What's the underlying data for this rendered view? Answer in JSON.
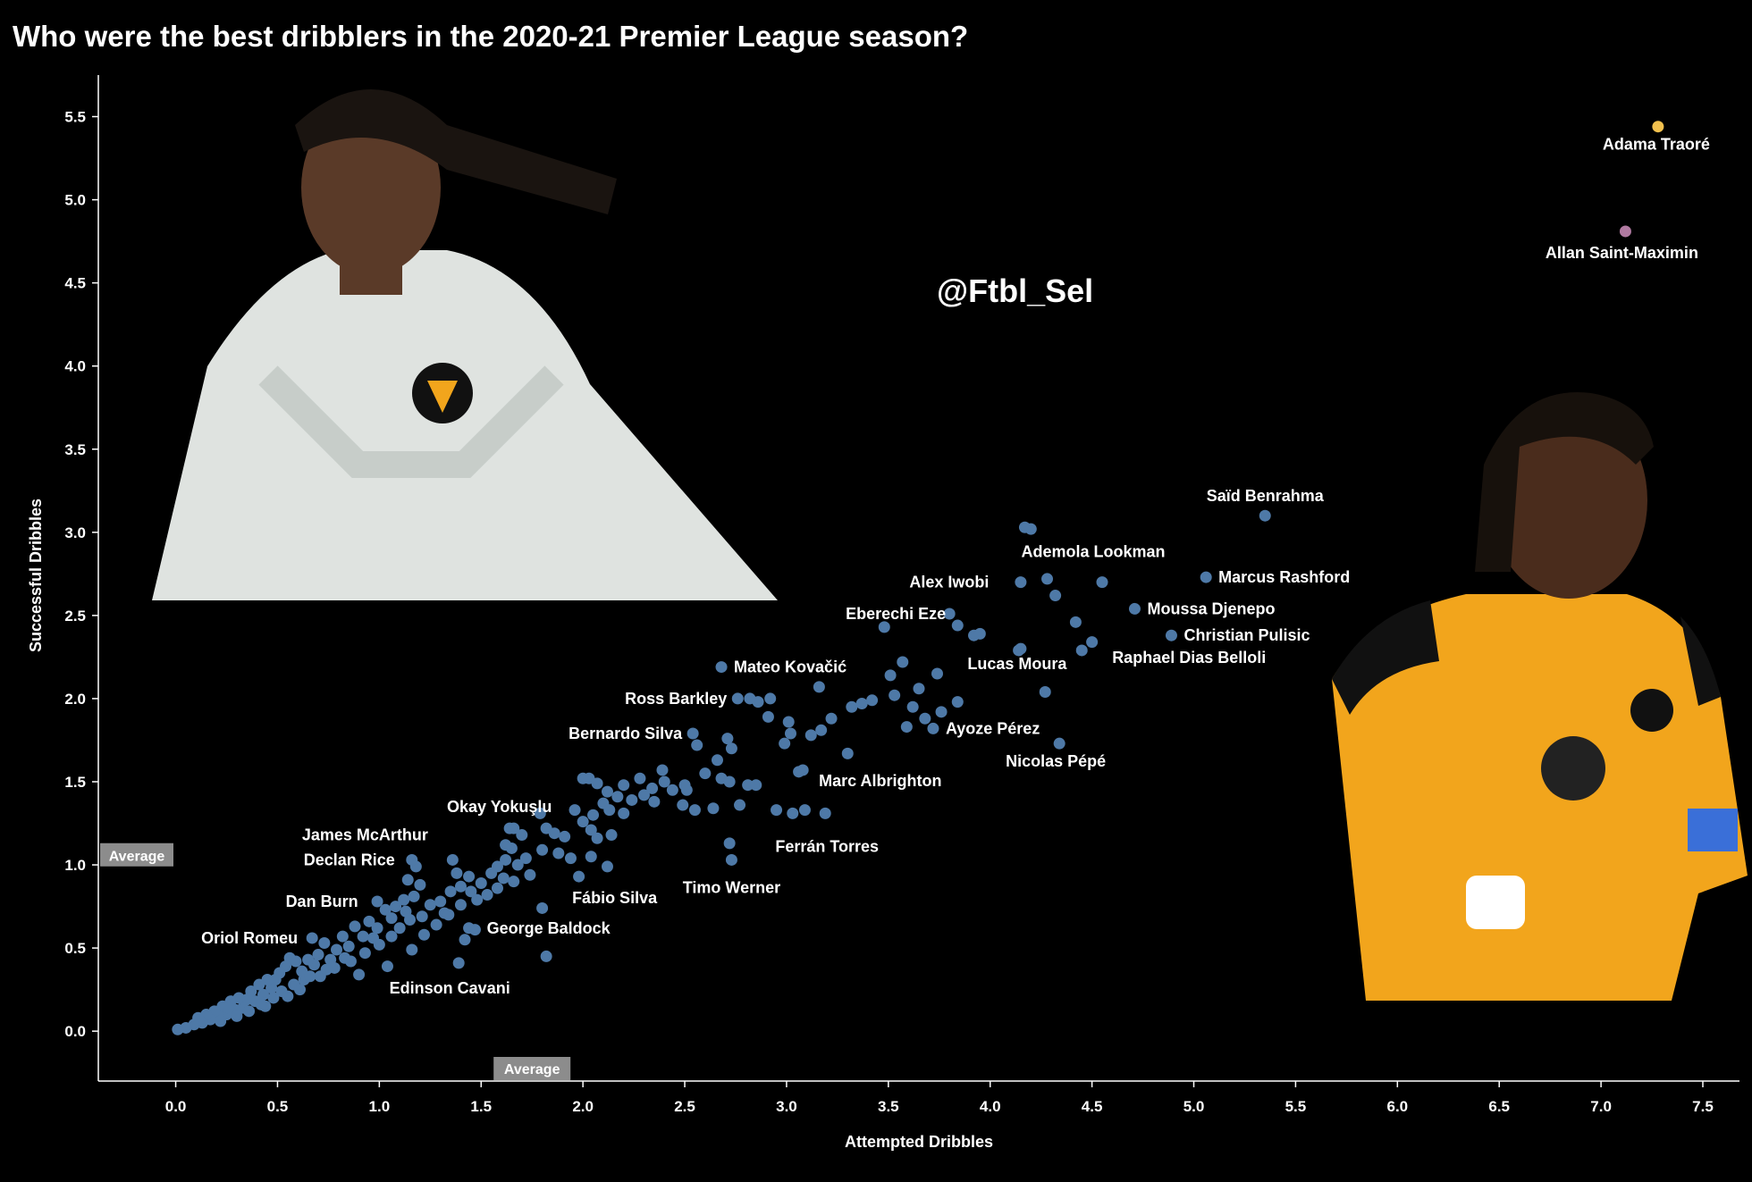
{
  "title": "Who were the best dribblers in the 2020-21 Premier League season?",
  "watermark": "@Ftbl_Sel",
  "average_label": "Average",
  "player_photos": [
    {
      "name": "photo-adama-traore-white-kit",
      "kit_color": "#dfe3e0"
    },
    {
      "name": "photo-adama-traore-gold-kit",
      "kit_color": "#f2a51c"
    }
  ],
  "chart_data": {
    "type": "scatter",
    "title": "Who were the best dribblers in the 2020-21 Premier League season?",
    "xlabel": "Attempted Dribbles",
    "ylabel": "Successful Dribbles",
    "xlim": [
      -0.38,
      7.68
    ],
    "ylim": [
      -0.3,
      5.75
    ],
    "xticks": [
      "0.0",
      "0.5",
      "1.0",
      "1.5",
      "2.0",
      "2.5",
      "3.0",
      "3.5",
      "4.0",
      "4.5",
      "5.0",
      "5.5",
      "6.0",
      "6.5",
      "7.0",
      "7.5"
    ],
    "yticks": [
      "0.0",
      "0.5",
      "1.0",
      "1.5",
      "2.0",
      "2.5",
      "3.0",
      "3.5",
      "4.0",
      "4.5",
      "5.0",
      "5.5"
    ],
    "grid": false,
    "point_color": "#4e79a7",
    "averages": {
      "x": 1.75,
      "y": 1.05
    },
    "highlighted": [
      {
        "name": "Adama Traoré",
        "x": 7.28,
        "y": 5.44,
        "color": "#f2c14e"
      },
      {
        "name": "Allan Saint-Maximin",
        "x": 7.12,
        "y": 4.81,
        "color": "#b07aa1"
      }
    ],
    "labeled_points": [
      {
        "name": "Saïd Benrahma",
        "x": 5.35,
        "y": 3.1
      },
      {
        "name": "Ademola Lookman",
        "x": 4.55,
        "y": 2.7
      },
      {
        "name": "Alex Iwobi",
        "x": 4.15,
        "y": 2.7
      },
      {
        "name": "Marcus Rashford",
        "x": 5.06,
        "y": 2.73
      },
      {
        "name": "Eberechi Eze",
        "x": 3.8,
        "y": 2.51
      },
      {
        "name": "Moussa Djenepo",
        "x": 4.71,
        "y": 2.54
      },
      {
        "name": "Christian Pulisic",
        "x": 4.89,
        "y": 2.38
      },
      {
        "name": "Lucas Moura",
        "x": 4.15,
        "y": 2.3
      },
      {
        "name": "Raphael Dias Belloli",
        "x": 4.45,
        "y": 2.29
      },
      {
        "name": "Mateo Kovačić",
        "x": 2.68,
        "y": 2.19
      },
      {
        "name": "Ross Barkley",
        "x": 2.76,
        "y": 2.0
      },
      {
        "name": "Ayoze Pérez",
        "x": 3.72,
        "y": 1.82
      },
      {
        "name": "Bernardo Silva",
        "x": 2.54,
        "y": 1.79
      },
      {
        "name": "Nicolas Pépé",
        "x": 4.34,
        "y": 1.73
      },
      {
        "name": "Marc Albrighton",
        "x": 3.08,
        "y": 1.57
      },
      {
        "name": "Okay Yokuşlu",
        "x": 1.66,
        "y": 1.22
      },
      {
        "name": "Ferrán Torres",
        "x": 3.19,
        "y": 1.31
      },
      {
        "name": "James McArthur",
        "x": 1.36,
        "y": 1.03
      },
      {
        "name": "Declan Rice",
        "x": 1.16,
        "y": 1.03
      },
      {
        "name": "Timo Werner",
        "x": 2.73,
        "y": 1.03
      },
      {
        "name": "Fábio Silva",
        "x": 1.98,
        "y": 0.93
      },
      {
        "name": "Dan Burn",
        "x": 0.99,
        "y": 0.78
      },
      {
        "name": "George Baldock",
        "x": 1.44,
        "y": 0.62
      },
      {
        "name": "Oriol Romeu",
        "x": 0.67,
        "y": 0.56
      },
      {
        "name": "Edinson Cavani",
        "x": 1.39,
        "y": 0.41
      }
    ],
    "other_points": [
      [
        4.17,
        3.03
      ],
      [
        4.2,
        3.02
      ],
      [
        4.28,
        2.72
      ],
      [
        4.32,
        2.62
      ],
      [
        3.84,
        2.44
      ],
      [
        3.92,
        2.38
      ],
      [
        3.95,
        2.39
      ],
      [
        4.42,
        2.46
      ],
      [
        4.5,
        2.34
      ],
      [
        4.14,
        2.29
      ],
      [
        4.27,
        2.04
      ],
      [
        3.48,
        2.43
      ],
      [
        3.57,
        2.22
      ],
      [
        3.51,
        2.14
      ],
      [
        3.74,
        2.15
      ],
      [
        3.53,
        2.02
      ],
      [
        3.62,
        1.95
      ],
      [
        3.65,
        2.06
      ],
      [
        3.76,
        1.92
      ],
      [
        3.84,
        1.98
      ],
      [
        3.59,
        1.83
      ],
      [
        3.68,
        1.88
      ],
      [
        3.42,
        1.99
      ],
      [
        3.37,
        1.97
      ],
      [
        3.32,
        1.95
      ],
      [
        3.22,
        1.88
      ],
      [
        3.17,
        1.81
      ],
      [
        3.12,
        1.78
      ],
      [
        3.02,
        1.79
      ],
      [
        2.99,
        1.73
      ],
      [
        3.01,
        1.86
      ],
      [
        3.3,
        1.67
      ],
      [
        3.16,
        2.07
      ],
      [
        3.06,
        1.56
      ],
      [
        2.86,
        1.98
      ],
      [
        2.92,
        2.0
      ],
      [
        2.82,
        2.0
      ],
      [
        2.91,
        1.89
      ],
      [
        2.56,
        1.72
      ],
      [
        2.71,
        1.76
      ],
      [
        2.73,
        1.7
      ],
      [
        2.66,
        1.63
      ],
      [
        2.68,
        1.52
      ],
      [
        2.72,
        1.5
      ],
      [
        2.81,
        1.48
      ],
      [
        2.85,
        1.48
      ],
      [
        2.77,
        1.36
      ],
      [
        2.64,
        1.34
      ],
      [
        2.55,
        1.33
      ],
      [
        2.49,
        1.36
      ],
      [
        2.51,
        1.45
      ],
      [
        2.39,
        1.57
      ],
      [
        2.44,
        1.45
      ],
      [
        2.34,
        1.46
      ],
      [
        2.28,
        1.52
      ],
      [
        2.3,
        1.42
      ],
      [
        2.24,
        1.39
      ],
      [
        2.17,
        1.41
      ],
      [
        2.2,
        1.48
      ],
      [
        2.12,
        1.44
      ],
      [
        2.03,
        1.52
      ],
      [
        2.07,
        1.49
      ],
      [
        2.0,
        1.52
      ],
      [
        2.1,
        1.37
      ],
      [
        2.05,
        1.3
      ],
      [
        2.13,
        1.33
      ],
      [
        2.0,
        1.26
      ],
      [
        1.96,
        1.33
      ],
      [
        2.04,
        1.21
      ],
      [
        2.07,
        1.16
      ],
      [
        2.14,
        1.18
      ],
      [
        2.04,
        1.05
      ],
      [
        2.12,
        0.99
      ],
      [
        1.91,
        1.17
      ],
      [
        1.86,
        1.19
      ],
      [
        1.82,
        1.22
      ],
      [
        1.79,
        1.31
      ],
      [
        1.88,
        1.07
      ],
      [
        1.94,
        1.04
      ],
      [
        1.8,
        1.09
      ],
      [
        1.72,
        1.04
      ],
      [
        1.65,
        1.1
      ],
      [
        1.68,
        1.0
      ],
      [
        1.62,
        1.03
      ],
      [
        1.58,
        0.99
      ],
      [
        1.55,
        0.95
      ],
      [
        1.61,
        0.92
      ],
      [
        1.5,
        0.89
      ],
      [
        1.45,
        0.84
      ],
      [
        1.4,
        0.87
      ],
      [
        1.44,
        0.93
      ],
      [
        1.38,
        0.95
      ],
      [
        1.35,
        0.84
      ],
      [
        1.3,
        0.78
      ],
      [
        1.32,
        0.71
      ],
      [
        1.25,
        0.76
      ],
      [
        1.2,
        0.88
      ],
      [
        1.18,
        0.99
      ],
      [
        1.14,
        0.91
      ],
      [
        1.12,
        0.79
      ],
      [
        1.08,
        0.75
      ],
      [
        1.15,
        0.67
      ],
      [
        1.1,
        0.62
      ],
      [
        1.06,
        0.68
      ],
      [
        1.03,
        0.73
      ],
      [
        0.99,
        0.62
      ],
      [
        0.95,
        0.66
      ],
      [
        0.92,
        0.57
      ],
      [
        0.88,
        0.63
      ],
      [
        0.85,
        0.51
      ],
      [
        0.82,
        0.57
      ],
      [
        0.79,
        0.49
      ],
      [
        0.76,
        0.43
      ],
      [
        0.73,
        0.53
      ],
      [
        0.7,
        0.46
      ],
      [
        0.68,
        0.4
      ],
      [
        0.65,
        0.43
      ],
      [
        0.62,
        0.36
      ],
      [
        0.59,
        0.42
      ],
      [
        0.56,
        0.44
      ],
      [
        0.54,
        0.39
      ],
      [
        0.51,
        0.35
      ],
      [
        0.49,
        0.31
      ],
      [
        0.47,
        0.26
      ],
      [
        0.45,
        0.31
      ],
      [
        0.43,
        0.22
      ],
      [
        0.41,
        0.28
      ],
      [
        0.39,
        0.18
      ],
      [
        0.37,
        0.24
      ],
      [
        0.35,
        0.19
      ],
      [
        0.33,
        0.14
      ],
      [
        0.31,
        0.2
      ],
      [
        0.29,
        0.13
      ],
      [
        0.27,
        0.18
      ],
      [
        0.25,
        0.1
      ],
      [
        0.23,
        0.15
      ],
      [
        0.21,
        0.09
      ],
      [
        0.19,
        0.12
      ],
      [
        0.17,
        0.07
      ],
      [
        0.15,
        0.1
      ],
      [
        0.13,
        0.05
      ],
      [
        0.11,
        0.08
      ],
      [
        0.09,
        0.04
      ],
      [
        0.05,
        0.02
      ],
      [
        0.01,
        0.01
      ],
      [
        0.44,
        0.15
      ],
      [
        0.52,
        0.24
      ],
      [
        0.58,
        0.28
      ],
      [
        0.63,
        0.31
      ],
      [
        0.71,
        0.33
      ],
      [
        0.78,
        0.38
      ],
      [
        0.86,
        0.42
      ],
      [
        0.93,
        0.47
      ],
      [
        1.0,
        0.52
      ],
      [
        1.06,
        0.57
      ],
      [
        1.16,
        0.49
      ],
      [
        1.04,
        0.39
      ],
      [
        0.9,
        0.34
      ],
      [
        0.83,
        0.44
      ],
      [
        1.22,
        0.58
      ],
      [
        1.28,
        0.64
      ],
      [
        1.34,
        0.7
      ],
      [
        1.4,
        0.76
      ],
      [
        1.48,
        0.79
      ],
      [
        1.53,
        0.82
      ],
      [
        1.58,
        0.86
      ],
      [
        1.66,
        0.9
      ],
      [
        1.74,
        0.94
      ],
      [
        1.8,
        0.74
      ],
      [
        1.82,
        0.45
      ],
      [
        1.47,
        0.61
      ],
      [
        1.42,
        0.55
      ],
      [
        1.64,
        1.22
      ],
      [
        1.7,
        1.18
      ],
      [
        2.2,
        1.31
      ],
      [
        2.35,
        1.38
      ],
      [
        2.4,
        1.5
      ],
      [
        2.6,
        1.55
      ],
      [
        2.5,
        1.48
      ],
      [
        2.95,
        1.33
      ],
      [
        3.03,
        1.31
      ],
      [
        3.09,
        1.33
      ],
      [
        2.72,
        1.13
      ],
      [
        1.62,
        1.12
      ],
      [
        1.17,
        0.81
      ],
      [
        1.21,
        0.69
      ],
      [
        0.97,
        0.56
      ],
      [
        1.13,
        0.72
      ],
      [
        0.74,
        0.37
      ],
      [
        0.66,
        0.33
      ],
      [
        0.61,
        0.25
      ],
      [
        0.55,
        0.21
      ],
      [
        0.48,
        0.2
      ],
      [
        0.42,
        0.16
      ],
      [
        0.36,
        0.12
      ],
      [
        0.3,
        0.09
      ],
      [
        0.26,
        0.14
      ],
      [
        0.22,
        0.06
      ]
    ]
  }
}
